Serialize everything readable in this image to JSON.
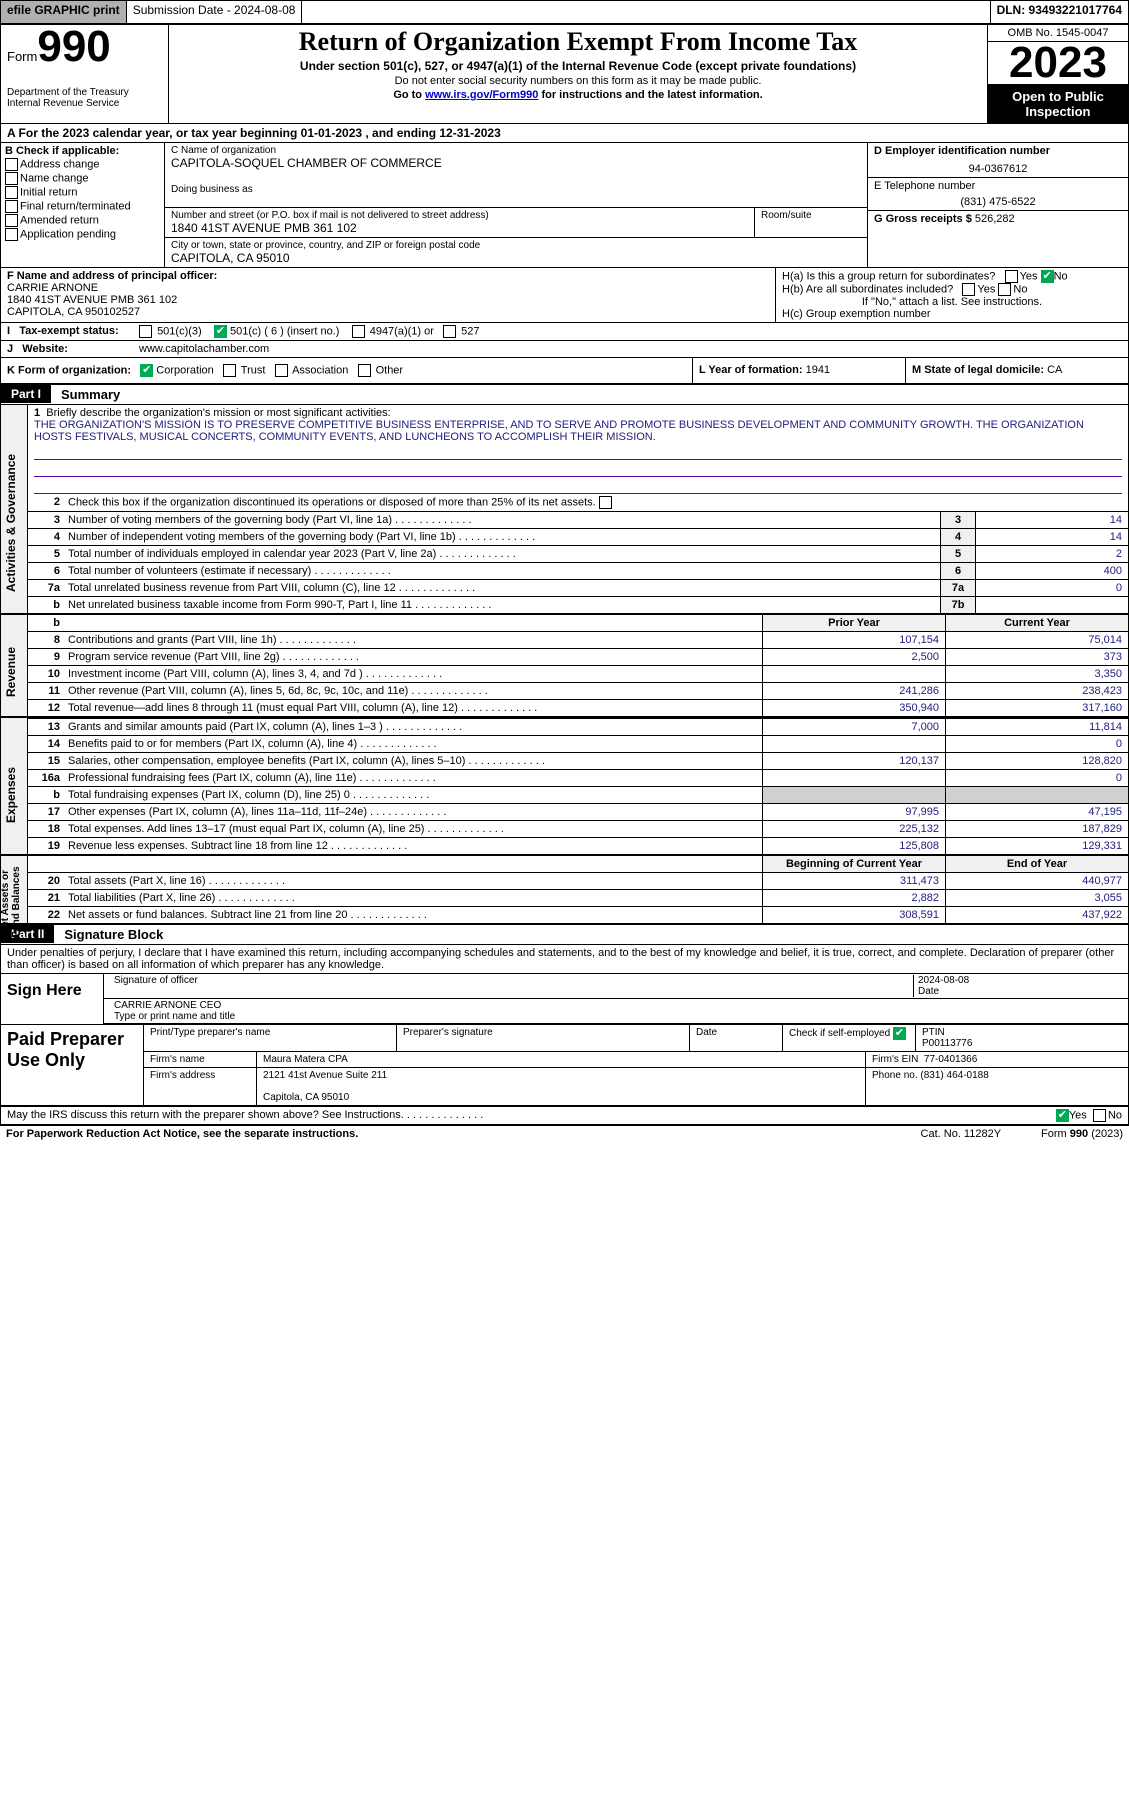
{
  "topbar": {
    "efile": "efile GRAPHIC print",
    "sub_label": "Submission Date - 2024-08-08",
    "dln": "DLN: 93493221017764"
  },
  "header": {
    "form_word": "Form",
    "form_num": "990",
    "dept": "Department of the Treasury\nInternal Revenue Service",
    "title": "Return of Organization Exempt From Income Tax",
    "sub1": "Under section 501(c), 527, or 4947(a)(1) of the Internal Revenue Code (except private foundations)",
    "sub2": "Do not enter social security numbers on this form as it may be made public.",
    "goto_pre": "Go to ",
    "goto_link": "www.irs.gov/Form990",
    "goto_post": " for instructions and the latest information.",
    "omb": "OMB No. 1545-0047",
    "year": "2023",
    "open": "Open to Public Inspection"
  },
  "row_a": "A  For the 2023 calendar year, or tax year beginning 01-01-2023   , and ending 12-31-2023",
  "section_b": {
    "hdr": "B Check if applicable:",
    "items": [
      "Address change",
      "Name change",
      "Initial return",
      "Final return/terminated",
      "Amended return",
      "Application pending"
    ]
  },
  "section_c": {
    "lbl_name": "C Name of organization",
    "org_name": "CAPITOLA-SOQUEL CHAMBER OF COMMERCE",
    "dba_lbl": "Doing business as",
    "addr_lbl": "Number and street (or P.O. box if mail is not delivered to street address)",
    "addr": "1840 41ST AVENUE PMB 361 102",
    "room_lbl": "Room/suite",
    "city_lbl": "City or town, state or province, country, and ZIP or foreign postal code",
    "city": "CAPITOLA, CA  95010"
  },
  "section_d": {
    "ein_lbl": "D Employer identification number",
    "ein": "94-0367612",
    "tel_lbl": "E Telephone number",
    "tel": "(831) 475-6522",
    "gross_lbl": "G Gross receipts $",
    "gross": "526,282"
  },
  "section_f": {
    "lbl": "F Name and address of principal officer:",
    "name": "CARRIE ARNONE",
    "addr1": "1840 41ST AVENUE PMB 361 102",
    "addr2": "CAPITOLA, CA  950102527"
  },
  "section_h": {
    "ha": "H(a)  Is this a group return for subordinates?",
    "hb": "H(b)  Are all subordinates included?",
    "hb_note": "If \"No,\" attach a list. See instructions.",
    "hc": "H(c)  Group exemption number",
    "yes": "Yes",
    "no": "No"
  },
  "row_i": {
    "lbl": "Tax-exempt status:",
    "o1": "501(c)(3)",
    "o2": "501(c) ( 6 ) (insert no.)",
    "o3": "4947(a)(1) or",
    "o4": "527"
  },
  "row_j": {
    "lbl": "Website:",
    "val": "www.capitolachamber.com"
  },
  "row_k": {
    "lbl": "K Form of organization:",
    "o1": "Corporation",
    "o2": "Trust",
    "o3": "Association",
    "o4": "Other"
  },
  "row_l": {
    "lbl": "L Year of formation:",
    "val": "1941"
  },
  "row_m": {
    "lbl": "M State of legal domicile:",
    "val": "CA"
  },
  "part1": {
    "badge": "Part I",
    "title": "Summary"
  },
  "vtabs": {
    "gov": "Activities & Governance",
    "rev": "Revenue",
    "exp": "Expenses",
    "net": "Net Assets or\nFund Balances"
  },
  "line1": {
    "lbl": "Briefly describe the organization's mission or most significant activities:",
    "text": "THE ORGANIZATION'S MISSION IS TO PRESERVE COMPETITIVE BUSINESS ENTERPRISE, AND TO SERVE AND PROMOTE BUSINESS DEVELOPMENT AND COMMUNITY GROWTH. THE ORGANIZATION HOSTS FESTIVALS, MUSICAL CONCERTS, COMMUNITY EVENTS, AND LUNCHEONS TO ACCOMPLISH THEIR MISSION."
  },
  "line2": "Check this box       if the organization discontinued its operations or disposed of more than 25% of its net assets.",
  "govlines": [
    {
      "n": "3",
      "d": "Number of voting members of the governing body (Part VI, line 1a)",
      "c": "3",
      "v": "14"
    },
    {
      "n": "4",
      "d": "Number of independent voting members of the governing body (Part VI, line 1b)",
      "c": "4",
      "v": "14"
    },
    {
      "n": "5",
      "d": "Total number of individuals employed in calendar year 2023 (Part V, line 2a)",
      "c": "5",
      "v": "2"
    },
    {
      "n": "6",
      "d": "Total number of volunteers (estimate if necessary)",
      "c": "6",
      "v": "400"
    },
    {
      "n": "7a",
      "d": "Total unrelated business revenue from Part VIII, column (C), line 12",
      "c": "7a",
      "v": "0"
    },
    {
      "n": "b",
      "d": "Net unrelated business taxable income from Form 990-T, Part I, line 11",
      "c": "7b",
      "v": ""
    }
  ],
  "pyhdr": {
    "p": "Prior Year",
    "c": "Current Year"
  },
  "revlines": [
    {
      "n": "8",
      "d": "Contributions and grants (Part VIII, line 1h)",
      "p": "107,154",
      "c": "75,014"
    },
    {
      "n": "9",
      "d": "Program service revenue (Part VIII, line 2g)",
      "p": "2,500",
      "c": "373"
    },
    {
      "n": "10",
      "d": "Investment income (Part VIII, column (A), lines 3, 4, and 7d )",
      "p": "",
      "c": "3,350"
    },
    {
      "n": "11",
      "d": "Other revenue (Part VIII, column (A), lines 5, 6d, 8c, 9c, 10c, and 11e)",
      "p": "241,286",
      "c": "238,423"
    },
    {
      "n": "12",
      "d": "Total revenue—add lines 8 through 11 (must equal Part VIII, column (A), line 12)",
      "p": "350,940",
      "c": "317,160"
    }
  ],
  "explines": [
    {
      "n": "13",
      "d": "Grants and similar amounts paid (Part IX, column (A), lines 1–3 )",
      "p": "7,000",
      "c": "11,814"
    },
    {
      "n": "14",
      "d": "Benefits paid to or for members (Part IX, column (A), line 4)",
      "p": "",
      "c": "0"
    },
    {
      "n": "15",
      "d": "Salaries, other compensation, employee benefits (Part IX, column (A), lines 5–10)",
      "p": "120,137",
      "c": "128,820"
    },
    {
      "n": "16a",
      "d": "Professional fundraising fees (Part IX, column (A), line 11e)",
      "p": "",
      "c": "0"
    },
    {
      "n": "b",
      "d": "Total fundraising expenses (Part IX, column (D), line 25) 0",
      "p": "GRAY",
      "c": "GRAY"
    },
    {
      "n": "17",
      "d": "Other expenses (Part IX, column (A), lines 11a–11d, 11f–24e)",
      "p": "97,995",
      "c": "47,195"
    },
    {
      "n": "18",
      "d": "Total expenses. Add lines 13–17 (must equal Part IX, column (A), line 25)",
      "p": "225,132",
      "c": "187,829"
    },
    {
      "n": "19",
      "d": "Revenue less expenses. Subtract line 18 from line 12",
      "p": "125,808",
      "c": "129,331"
    }
  ],
  "nethdr": {
    "p": "Beginning of Current Year",
    "c": "End of Year"
  },
  "netlines": [
    {
      "n": "20",
      "d": "Total assets (Part X, line 16)",
      "p": "311,473",
      "c": "440,977"
    },
    {
      "n": "21",
      "d": "Total liabilities (Part X, line 26)",
      "p": "2,882",
      "c": "3,055"
    },
    {
      "n": "22",
      "d": "Net assets or fund balances. Subtract line 21 from line 20",
      "p": "308,591",
      "c": "437,922"
    }
  ],
  "part2": {
    "badge": "Part II",
    "title": "Signature Block"
  },
  "perjury": "Under penalties of perjury, I declare that I have examined this return, including accompanying schedules and statements, and to the best of my knowledge and belief, it is true, correct, and complete. Declaration of preparer (other than officer) is based on all information of which preparer has any knowledge.",
  "sign": {
    "title": "Sign Here",
    "sig_lbl": "Signature of officer",
    "date": "2024-08-08",
    "date_lbl": "Date",
    "name": "CARRIE ARNONE CEO",
    "name_lbl": "Type or print name and title"
  },
  "prep": {
    "title": "Paid Preparer Use Only",
    "pt_lbl": "Print/Type preparer's name",
    "sig_lbl": "Preparer's signature",
    "date_lbl": "Date",
    "check_lbl": "Check         if self-employed",
    "ptin_lbl": "PTIN",
    "ptin": "P00113776",
    "firm_lbl": "Firm's name",
    "firm": "Maura Matera CPA",
    "ein_lbl": "Firm's EIN",
    "ein": "77-0401366",
    "addr_lbl": "Firm's address",
    "addr1": "2121 41st Avenue Suite 211",
    "addr2": "Capitola, CA  95010",
    "phone_lbl": "Phone no.",
    "phone": "(831) 464-0188"
  },
  "discuss": "May the IRS discuss this return with the preparer shown above? See Instructions.",
  "footer": {
    "l": "For Paperwork Reduction Act Notice, see the separate instructions.",
    "m": "Cat. No. 11282Y",
    "r": "Form 990 (2023)"
  },
  "colors": {
    "link": "#0000cc",
    "data": "#202080",
    "check": "#00aa55"
  }
}
